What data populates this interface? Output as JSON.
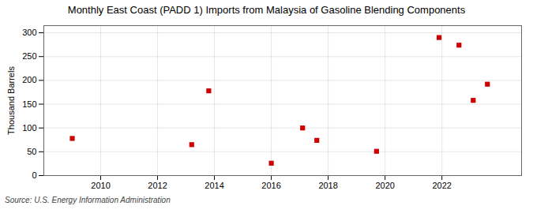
{
  "chart_data": {
    "type": "scatter",
    "title": "Monthly East Coast (PADD 1) Imports from Malaysia of Gasoline Blending Components",
    "ylabel": "Thousand Barrels",
    "annotations": [
      "Source: U.S. Energy Information Administration"
    ],
    "x": [
      2009.0,
      2013.2,
      2013.8,
      2016.0,
      2017.1,
      2017.6,
      2019.7,
      2021.9,
      2022.6,
      2023.1,
      2023.6
    ],
    "values": [
      78,
      65,
      178,
      26,
      100,
      74,
      51,
      290,
      274,
      158,
      192
    ],
    "color": "#cc0000",
    "marker": "square",
    "xlim": [
      2008.0,
      2024.8
    ],
    "ylim": [
      0,
      315
    ],
    "xticks": [
      2010,
      2012,
      2014,
      2016,
      2018,
      2020,
      2022
    ],
    "yticks": [
      0,
      50,
      100,
      150,
      200,
      250,
      300
    ],
    "grid": true
  }
}
